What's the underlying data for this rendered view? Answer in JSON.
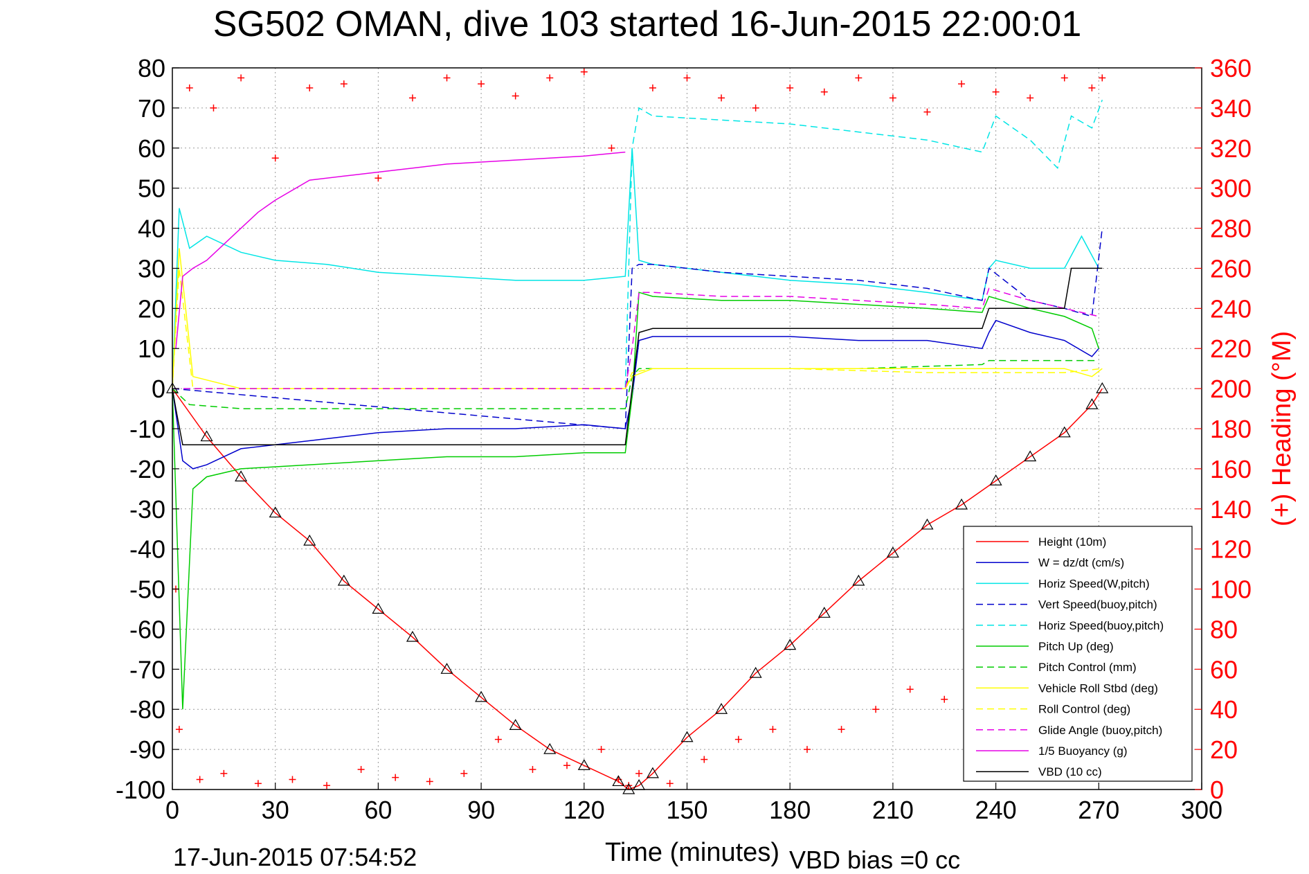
{
  "chart_data": {
    "type": "line",
    "title": "SG502 OMAN, dive 103 started 16-Jun-2015 22:00:01",
    "xlabel": "Time (minutes)",
    "ylabel_right": "(+) Heading (°M)",
    "footer_left": "17-Jun-2015 07:54:52",
    "footer_right": "VBD bias =0 cc",
    "xlim": [
      0,
      300
    ],
    "ylim": [
      -100,
      80
    ],
    "ylim_right": [
      0,
      360
    ],
    "x_ticks": [
      0,
      30,
      60,
      90,
      120,
      150,
      180,
      210,
      240,
      270,
      300
    ],
    "y_ticks": [
      80,
      70,
      60,
      50,
      40,
      30,
      20,
      10,
      0,
      -10,
      -20,
      -30,
      -40,
      -50,
      -60,
      -70,
      -80,
      -90,
      -100
    ],
    "y_ticks_right": [
      360,
      340,
      320,
      300,
      280,
      260,
      240,
      220,
      200,
      180,
      160,
      140,
      120,
      100,
      80,
      60,
      40,
      20,
      0
    ],
    "grid": true,
    "legend_position": "bottom-right",
    "series": [
      {
        "name": "Height (10m)",
        "color": "#ff0000",
        "style": "solid",
        "x": [
          0,
          10,
          20,
          30,
          40,
          50,
          60,
          70,
          80,
          90,
          100,
          110,
          120,
          130,
          133,
          136,
          140,
          150,
          160,
          170,
          180,
          190,
          200,
          210,
          220,
          230,
          240,
          250,
          260,
          268,
          271
        ],
        "y": [
          0,
          -12,
          -22,
          -31,
          -38,
          -48,
          -55,
          -62,
          -70,
          -77,
          -84,
          -90,
          -94,
          -98,
          -100,
          -99,
          -96,
          -87,
          -80,
          -71,
          -64,
          -56,
          -48,
          -41,
          -34,
          -29,
          -23,
          -17,
          -11,
          -4,
          0
        ]
      },
      {
        "name": "W = dz/dt (cm/s)",
        "color": "#0000cc",
        "style": "solid",
        "x": [
          0,
          3,
          6,
          10,
          20,
          40,
          60,
          80,
          100,
          120,
          132,
          134,
          136,
          140,
          160,
          180,
          200,
          220,
          236,
          238,
          240,
          250,
          260,
          268,
          270
        ],
        "y": [
          0,
          -18,
          -20,
          -19,
          -15,
          -13,
          -11,
          -10,
          -10,
          -9,
          -10,
          -2,
          12,
          13,
          13,
          13,
          12,
          12,
          10,
          14,
          17,
          14,
          12,
          8,
          10
        ]
      },
      {
        "name": "Horiz Speed(W,pitch)",
        "color": "#00e5e5",
        "style": "solid",
        "x": [
          0,
          2,
          5,
          10,
          20,
          30,
          45,
          60,
          80,
          100,
          120,
          132,
          134,
          136,
          140,
          160,
          180,
          200,
          220,
          236,
          238,
          240,
          250,
          260,
          265,
          270
        ],
        "y": [
          0,
          45,
          35,
          38,
          34,
          32,
          31,
          29,
          28,
          27,
          27,
          28,
          60,
          32,
          31,
          29,
          27,
          26,
          24,
          22,
          30,
          32,
          30,
          30,
          38,
          30
        ]
      },
      {
        "name": "Vert Speed(buoy,pitch)",
        "color": "#0000cc",
        "style": "dashed",
        "x": [
          0,
          132,
          134,
          136,
          140,
          160,
          180,
          200,
          220,
          236,
          238,
          250,
          260,
          268,
          271
        ],
        "y": [
          0,
          -10,
          30,
          31,
          31,
          29,
          28,
          27,
          25,
          22,
          30,
          22,
          20,
          18,
          40
        ]
      },
      {
        "name": "Horiz Speed(buoy,pitch)",
        "color": "#00e5e5",
        "style": "dashed",
        "x": [
          0,
          132,
          134,
          136,
          140,
          160,
          180,
          200,
          220,
          236,
          240,
          250,
          258,
          262,
          268,
          271
        ],
        "y": [
          0,
          0,
          60,
          70,
          68,
          67,
          66,
          64,
          62,
          59,
          68,
          62,
          55,
          68,
          65,
          72
        ]
      },
      {
        "name": "Pitch Up (deg)",
        "color": "#00cc00",
        "style": "solid",
        "x": [
          0,
          3,
          6,
          10,
          20,
          40,
          60,
          80,
          100,
          120,
          132,
          134,
          136,
          140,
          160,
          180,
          200,
          220,
          236,
          238,
          250,
          260,
          268,
          270
        ],
        "y": [
          0,
          -80,
          -25,
          -22,
          -20,
          -19,
          -18,
          -17,
          -17,
          -16,
          -16,
          -2,
          24,
          23,
          22,
          22,
          21,
          20,
          19,
          23,
          20,
          18,
          15,
          10
        ]
      },
      {
        "name": "Pitch Control (mm)",
        "color": "#00cc00",
        "style": "dashed",
        "x": [
          0,
          5,
          20,
          60,
          100,
          132,
          134,
          136,
          160,
          200,
          236,
          238,
          260,
          270
        ],
        "y": [
          0,
          -4,
          -5,
          -5,
          -5,
          -5,
          3,
          5,
          5,
          5,
          6,
          7,
          7,
          7
        ]
      },
      {
        "name": "Vehicle Roll Stbd (deg)",
        "color": "#ffff00",
        "style": "solid",
        "x": [
          0,
          2,
          6,
          20,
          60,
          100,
          132,
          134,
          140,
          180,
          220,
          260,
          268,
          271
        ],
        "y": [
          0,
          35,
          3,
          0,
          0,
          0,
          0,
          3,
          5,
          5,
          5,
          5,
          3,
          5
        ]
      },
      {
        "name": "Roll Control (deg)",
        "color": "#ffff00",
        "style": "dashed",
        "x": [
          0,
          2,
          6,
          20,
          60,
          100,
          132,
          134,
          140,
          180,
          220,
          260,
          271
        ],
        "y": [
          0,
          30,
          0,
          0,
          0,
          0,
          0,
          4,
          5,
          5,
          4,
          4,
          5
        ]
      },
      {
        "name": "Glide Angle (buoy,pitch)",
        "color": "#e600e6",
        "style": "dashed",
        "x": [
          0,
          132,
          134,
          136,
          140,
          160,
          180,
          200,
          220,
          236,
          238,
          250,
          260,
          270
        ],
        "y": [
          0,
          0,
          10,
          24,
          24,
          23,
          23,
          22,
          21,
          20,
          25,
          22,
          20,
          18
        ]
      },
      {
        "name": "1/5 Buoyancy (g)",
        "color": "#e600e6",
        "style": "solid",
        "x": [
          1,
          3,
          6,
          10,
          15,
          20,
          25,
          30,
          40,
          50,
          60,
          70,
          80,
          90,
          100,
          110,
          120,
          132
        ],
        "y": [
          10,
          28,
          30,
          32,
          36,
          40,
          44,
          47,
          52,
          53,
          54,
          55,
          56,
          56.5,
          57,
          57.5,
          58,
          59
        ]
      },
      {
        "name": "VBD (10 cc)",
        "color": "#000000",
        "style": "solid",
        "x": [
          0,
          1,
          3,
          132,
          134,
          136,
          140,
          236,
          238,
          260,
          262,
          270,
          271
        ],
        "y": [
          0,
          -5,
          -14,
          -14,
          0,
          14,
          15,
          15,
          20,
          20,
          30,
          30,
          30
        ]
      }
    ],
    "heading_series": {
      "name": "Heading",
      "color": "#ff0000",
      "marker": "+",
      "x": [
        1,
        2,
        5,
        8,
        12,
        15,
        20,
        25,
        30,
        35,
        40,
        45,
        50,
        55,
        60,
        65,
        70,
        75,
        80,
        85,
        90,
        95,
        100,
        105,
        110,
        115,
        120,
        125,
        128,
        130,
        133,
        136,
        140,
        145,
        150,
        155,
        160,
        165,
        170,
        175,
        180,
        185,
        190,
        195,
        200,
        205,
        210,
        215,
        220,
        225,
        230,
        235,
        240,
        245,
        250,
        255,
        260,
        265,
        268,
        271
      ],
      "y": [
        100,
        30,
        350,
        5,
        340,
        8,
        355,
        3,
        315,
        5,
        350,
        2,
        352,
        10,
        305,
        6,
        345,
        4,
        355,
        8,
        352,
        25,
        346,
        10,
        355,
        12,
        358,
        20,
        320,
        5,
        2,
        8,
        350,
        3,
        355,
        15,
        345,
        25,
        340,
        30,
        350,
        20,
        348,
        30,
        355,
        40,
        345,
        50,
        338,
        45,
        352,
        55,
        348,
        50,
        345,
        60,
        355,
        40,
        350,
        355
      ]
    }
  },
  "legend_title": ""
}
